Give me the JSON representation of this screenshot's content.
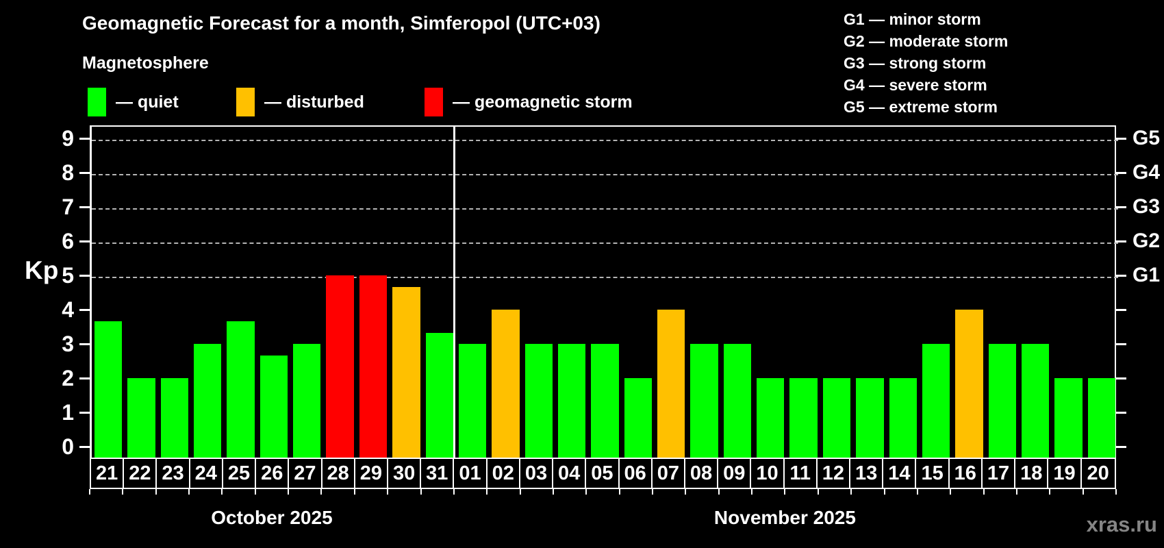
{
  "header": {
    "title": "Geomagnetic Forecast for a month, Simferopol (UTC+03)",
    "subtitle": "Magnetosphere"
  },
  "legend": {
    "items": [
      {
        "key": "quiet",
        "label": "— quiet",
        "color": "#00ff00"
      },
      {
        "key": "disturbed",
        "label": "— disturbed",
        "color": "#ffc000"
      },
      {
        "key": "storm",
        "label": "— geomagnetic storm",
        "color": "#ff0000"
      }
    ]
  },
  "storm_scale": {
    "lines": [
      "G1 — minor storm",
      "G2 — moderate storm",
      "G3 — strong storm",
      "G4 — severe storm",
      "G5 — extreme storm"
    ]
  },
  "axis": {
    "kp_label": "Kp"
  },
  "watermark": "xras.ru",
  "chart_data": {
    "type": "bar",
    "title": "Geomagnetic Forecast for a month, Simferopol (UTC+03)",
    "ylabel": "Kp",
    "ylim": [
      0,
      9
    ],
    "yticks": [
      0,
      1,
      2,
      3,
      4,
      5,
      6,
      7,
      8,
      9
    ],
    "grid": "horizontal dashed gridlines at Kp 5-9 only (G-storm levels)",
    "legend_position": "top",
    "right_axis_labels": [
      {
        "kp": 5,
        "label": "G1"
      },
      {
        "kp": 6,
        "label": "G2"
      },
      {
        "kp": 7,
        "label": "G3"
      },
      {
        "kp": 8,
        "label": "G4"
      },
      {
        "kp": 9,
        "label": "G5"
      }
    ],
    "status_colors": {
      "quiet": "#00ff00",
      "disturbed": "#ffc000",
      "storm": "#ff0000"
    },
    "month_groups": [
      {
        "label": "October 2025",
        "count": 11
      },
      {
        "label": "November 2025",
        "count": 20
      }
    ],
    "bars": [
      {
        "day": "21",
        "value": 3.67,
        "status": "quiet"
      },
      {
        "day": "22",
        "value": 2,
        "status": "quiet"
      },
      {
        "day": "23",
        "value": 2,
        "status": "quiet"
      },
      {
        "day": "24",
        "value": 3,
        "status": "quiet"
      },
      {
        "day": "25",
        "value": 3.67,
        "status": "quiet"
      },
      {
        "day": "26",
        "value": 2.67,
        "status": "quiet"
      },
      {
        "day": "27",
        "value": 3,
        "status": "quiet"
      },
      {
        "day": "28",
        "value": 5,
        "status": "storm"
      },
      {
        "day": "29",
        "value": 5,
        "status": "storm"
      },
      {
        "day": "30",
        "value": 4.67,
        "status": "disturbed"
      },
      {
        "day": "31",
        "value": 3.33,
        "status": "quiet"
      },
      {
        "day": "01",
        "value": 3,
        "status": "quiet"
      },
      {
        "day": "02",
        "value": 4,
        "status": "disturbed"
      },
      {
        "day": "03",
        "value": 3,
        "status": "quiet"
      },
      {
        "day": "04",
        "value": 3,
        "status": "quiet"
      },
      {
        "day": "05",
        "value": 3,
        "status": "quiet"
      },
      {
        "day": "06",
        "value": 2,
        "status": "quiet"
      },
      {
        "day": "07",
        "value": 4,
        "status": "disturbed"
      },
      {
        "day": "08",
        "value": 3,
        "status": "quiet"
      },
      {
        "day": "09",
        "value": 3,
        "status": "quiet"
      },
      {
        "day": "10",
        "value": 2,
        "status": "quiet"
      },
      {
        "day": "11",
        "value": 2,
        "status": "quiet"
      },
      {
        "day": "12",
        "value": 2,
        "status": "quiet"
      },
      {
        "day": "13",
        "value": 2,
        "status": "quiet"
      },
      {
        "day": "14",
        "value": 2,
        "status": "quiet"
      },
      {
        "day": "15",
        "value": 3,
        "status": "quiet"
      },
      {
        "day": "16",
        "value": 4,
        "status": "disturbed"
      },
      {
        "day": "17",
        "value": 3,
        "status": "quiet"
      },
      {
        "day": "18",
        "value": 3,
        "status": "quiet"
      },
      {
        "day": "19",
        "value": 2,
        "status": "quiet"
      },
      {
        "day": "20",
        "value": 2,
        "status": "quiet"
      }
    ]
  }
}
